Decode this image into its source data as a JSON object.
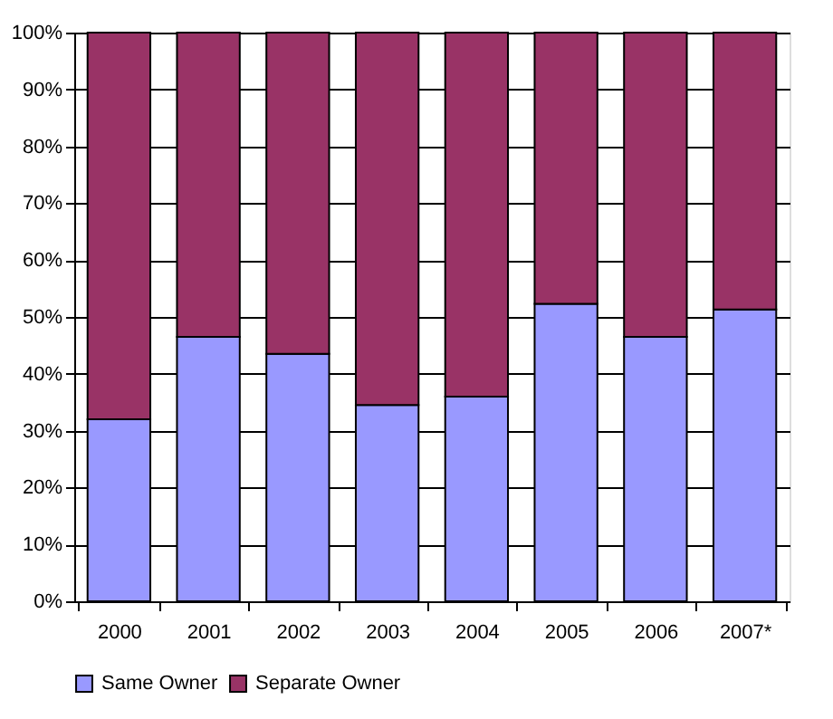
{
  "chart_data": {
    "type": "bar",
    "stacked": true,
    "categories": [
      "2000",
      "2001",
      "2002",
      "2003",
      "2004",
      "2005",
      "2006",
      "2007*"
    ],
    "series": [
      {
        "name": "Same Owner",
        "color": "#9999ff",
        "values": [
          32,
          46.5,
          43.5,
          34.5,
          36,
          52.3,
          46.5,
          51.3
        ]
      },
      {
        "name": "Separate Owner",
        "color": "#993366",
        "values": [
          68,
          53.5,
          56.5,
          65.5,
          64,
          47.7,
          53.5,
          48.7
        ]
      }
    ],
    "ylim": [
      0,
      100
    ],
    "yticks": [
      {
        "value": 0,
        "label": "0%"
      },
      {
        "value": 10,
        "label": "10%"
      },
      {
        "value": 20,
        "label": "20%"
      },
      {
        "value": 30,
        "label": "30%"
      },
      {
        "value": 40,
        "label": "40%"
      },
      {
        "value": 50,
        "label": "50%"
      },
      {
        "value": 60,
        "label": "60%"
      },
      {
        "value": 70,
        "label": "70%"
      },
      {
        "value": 80,
        "label": "80%"
      },
      {
        "value": 90,
        "label": "90%"
      },
      {
        "value": 100,
        "label": "100%"
      }
    ],
    "grid": "y",
    "legend": "bottom"
  }
}
